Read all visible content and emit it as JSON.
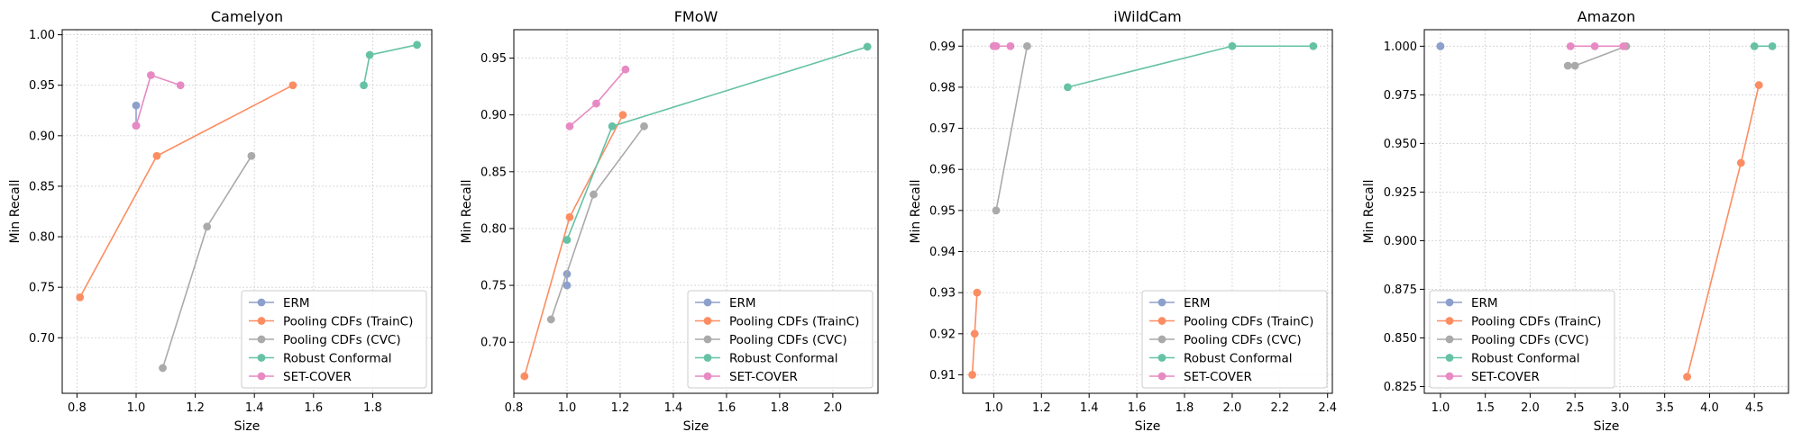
{
  "colors": {
    "ERM": "#8da0cb",
    "Pooling CDFs (TrainC)": "#fc8d62",
    "Pooling CDFs (CVC)": "#aaaaaa",
    "Robust Conformal": "#66c2a5",
    "SET-COVER": "#e78ac3"
  },
  "chart_data": [
    {
      "type": "line",
      "title": "Camelyon",
      "xlabel": "Size",
      "ylabel": "Min Recall",
      "xlim": [
        0.75,
        2.0
      ],
      "ylim": [
        0.645,
        1.005
      ],
      "xticks": [
        0.8,
        1.0,
        1.2,
        1.4,
        1.6,
        1.8
      ],
      "xtick_labels": [
        "0.8",
        "1.0",
        "1.2",
        "1.4",
        "1.6",
        "1.8"
      ],
      "yticks": [
        0.7,
        0.75,
        0.8,
        0.85,
        0.9,
        0.95,
        1.0
      ],
      "ytick_labels": [
        "0.70",
        "0.75",
        "0.80",
        "0.85",
        "0.90",
        "0.95",
        "1.00"
      ],
      "grid": true,
      "legend": "lower-right",
      "series": [
        {
          "name": "ERM",
          "x": [
            1.0,
            1.0
          ],
          "y": [
            0.93,
            0.91
          ]
        },
        {
          "name": "Pooling CDFs (TrainC)",
          "x": [
            0.81,
            1.07,
            1.53
          ],
          "y": [
            0.74,
            0.88,
            0.95
          ]
        },
        {
          "name": "Pooling CDFs (CVC)",
          "x": [
            1.09,
            1.24,
            1.39
          ],
          "y": [
            0.67,
            0.81,
            0.88
          ]
        },
        {
          "name": "Robust Conformal",
          "x": [
            1.77,
            1.79,
            1.95
          ],
          "y": [
            0.95,
            0.98,
            0.99
          ]
        },
        {
          "name": "SET-COVER",
          "x": [
            1.0,
            1.0,
            1.05,
            1.15
          ],
          "y": [
            0.91,
            0.91,
            0.96,
            0.95
          ]
        }
      ]
    },
    {
      "type": "line",
      "title": "FMoW",
      "xlabel": "Size",
      "ylabel": "Min Recall",
      "xlim": [
        0.8,
        2.17
      ],
      "ylim": [
        0.655,
        0.975
      ],
      "xticks": [
        0.8,
        1.0,
        1.2,
        1.4,
        1.6,
        1.8,
        2.0
      ],
      "xtick_labels": [
        "0.8",
        "1.0",
        "1.2",
        "1.4",
        "1.6",
        "1.8",
        "2.0"
      ],
      "yticks": [
        0.7,
        0.75,
        0.8,
        0.85,
        0.9,
        0.95
      ],
      "ytick_labels": [
        "0.70",
        "0.75",
        "0.80",
        "0.85",
        "0.90",
        "0.95"
      ],
      "grid": true,
      "legend": "lower-right",
      "series": [
        {
          "name": "ERM",
          "x": [
            1.0,
            1.0
          ],
          "y": [
            0.76,
            0.75
          ]
        },
        {
          "name": "Pooling CDFs (TrainC)",
          "x": [
            0.84,
            1.01,
            1.21
          ],
          "y": [
            0.67,
            0.81,
            0.9
          ]
        },
        {
          "name": "Pooling CDFs (CVC)",
          "x": [
            0.94,
            1.1,
            1.29
          ],
          "y": [
            0.72,
            0.83,
            0.89
          ]
        },
        {
          "name": "Robust Conformal",
          "x": [
            1.0,
            1.17,
            2.13
          ],
          "y": [
            0.79,
            0.89,
            0.96
          ]
        },
        {
          "name": "SET-COVER",
          "x": [
            1.01,
            1.11,
            1.22
          ],
          "y": [
            0.89,
            0.91,
            0.94
          ]
        }
      ]
    },
    {
      "type": "line",
      "title": "iWildCam",
      "xlabel": "Size",
      "ylabel": "Min Recall",
      "xlim": [
        0.87,
        2.42
      ],
      "ylim": [
        0.9055,
        0.994
      ],
      "xticks": [
        1.0,
        1.2,
        1.4,
        1.6,
        1.8,
        2.0,
        2.2,
        2.4
      ],
      "xtick_labels": [
        "1.0",
        "1.2",
        "1.4",
        "1.6",
        "1.8",
        "2.0",
        "2.2",
        "2.4"
      ],
      "yticks": [
        0.91,
        0.92,
        0.93,
        0.94,
        0.95,
        0.96,
        0.97,
        0.98,
        0.99
      ],
      "ytick_labels": [
        "0.91",
        "0.92",
        "0.93",
        "0.94",
        "0.95",
        "0.96",
        "0.97",
        "0.98",
        "0.99"
      ],
      "grid": true,
      "legend": "lower-right",
      "series": [
        {
          "name": "ERM",
          "x": [
            1.0
          ],
          "y": [
            0.99
          ]
        },
        {
          "name": "Pooling CDFs (TrainC)",
          "x": [
            0.91,
            0.92,
            0.93
          ],
          "y": [
            0.91,
            0.92,
            0.93
          ]
        },
        {
          "name": "Pooling CDFs (CVC)",
          "x": [
            1.01,
            1.14
          ],
          "y": [
            0.95,
            0.99
          ]
        },
        {
          "name": "Robust Conformal",
          "x": [
            1.31,
            2.0,
            2.34
          ],
          "y": [
            0.98,
            0.99,
            0.99
          ]
        },
        {
          "name": "SET-COVER",
          "x": [
            1.0,
            1.01,
            1.07
          ],
          "y": [
            0.99,
            0.99,
            0.99
          ]
        }
      ]
    },
    {
      "type": "line",
      "title": "Amazon",
      "xlabel": "Size",
      "ylabel": "Min Recall",
      "xlim": [
        0.82,
        4.88
      ],
      "ylim": [
        0.8215,
        1.0085
      ],
      "xticks": [
        1.0,
        1.5,
        2.0,
        2.5,
        3.0,
        3.5,
        4.0,
        4.5
      ],
      "xtick_labels": [
        "1.0",
        "1.5",
        "2.0",
        "2.5",
        "3.0",
        "3.5",
        "4.0",
        "4.5"
      ],
      "yticks": [
        0.825,
        0.85,
        0.875,
        0.9,
        0.925,
        0.95,
        0.975,
        1.0
      ],
      "ytick_labels": [
        "0.825",
        "0.850",
        "0.875",
        "0.900",
        "0.925",
        "0.950",
        "0.975",
        "1.000"
      ],
      "grid": true,
      "legend": "lower-left",
      "series": [
        {
          "name": "ERM",
          "x": [
            1.0,
            1.0
          ],
          "y": [
            1.0,
            1.0
          ]
        },
        {
          "name": "Pooling CDFs (TrainC)",
          "x": [
            3.75,
            4.35,
            4.55
          ],
          "y": [
            0.83,
            0.94,
            0.98
          ]
        },
        {
          "name": "Pooling CDFs (CVC)",
          "x": [
            2.42,
            2.5,
            3.07
          ],
          "y": [
            0.99,
            0.99,
            1.0
          ]
        },
        {
          "name": "Robust Conformal",
          "x": [
            4.5,
            4.7
          ],
          "y": [
            1.0,
            1.0
          ]
        },
        {
          "name": "SET-COVER",
          "x": [
            2.45,
            2.72,
            3.04
          ],
          "y": [
            1.0,
            1.0,
            1.0
          ]
        }
      ]
    }
  ]
}
